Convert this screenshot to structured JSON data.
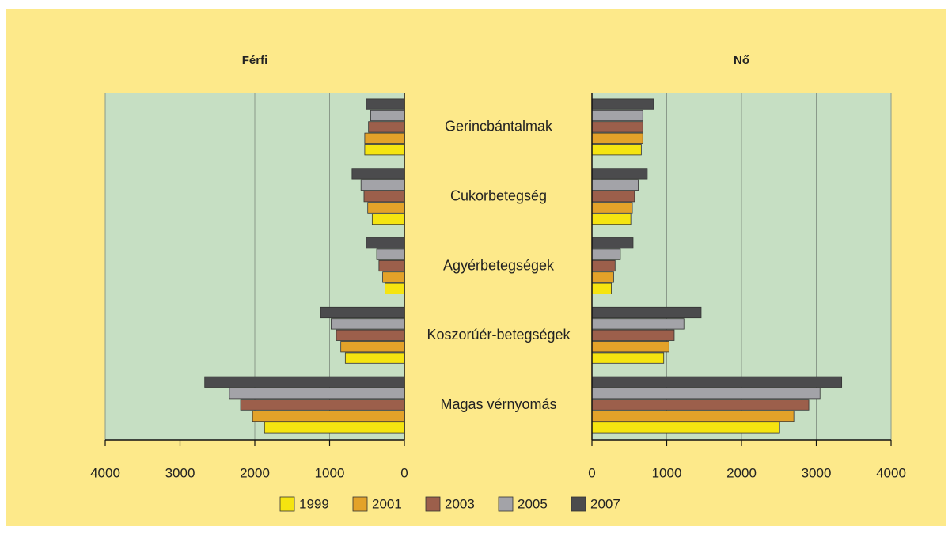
{
  "chart_data": {
    "type": "bar",
    "orientation": "horizontal",
    "categories": [
      "Gerincbántalmak",
      "Cukorbetegség",
      "Agyérbetegségek",
      "Koszorúér-betegségek",
      "Magas vérnyomás"
    ],
    "series": [
      {
        "name": "1999",
        "color": "#f5e410"
      },
      {
        "name": "2001",
        "color": "#e3a229"
      },
      {
        "name": "2003",
        "color": "#9c5f4b"
      },
      {
        "name": "2005",
        "color": "#a3a3a8"
      },
      {
        "name": "2007",
        "color": "#4b4b4d"
      }
    ],
    "panels": [
      {
        "title": "Férfi",
        "x_inverted": true,
        "xlim": [
          0,
          4000
        ],
        "xticks": [
          0,
          1000,
          2000,
          3000,
          4000
        ],
        "grid": true,
        "values": [
          [
            530,
            430,
            260,
            790,
            1870
          ],
          [
            530,
            490,
            290,
            850,
            2030
          ],
          [
            480,
            540,
            340,
            910,
            2190
          ],
          [
            450,
            580,
            370,
            980,
            2340
          ],
          [
            510,
            700,
            510,
            1120,
            2670
          ]
        ]
      },
      {
        "title": "Nő",
        "x_inverted": false,
        "xlim": [
          0,
          4000
        ],
        "xticks": [
          0,
          1000,
          2000,
          3000,
          4000
        ],
        "grid": true,
        "values": [
          [
            660,
            520,
            260,
            960,
            2510
          ],
          [
            680,
            540,
            290,
            1030,
            2700
          ],
          [
            680,
            570,
            310,
            1100,
            2900
          ],
          [
            680,
            620,
            380,
            1230,
            3050
          ],
          [
            825,
            740,
            550,
            1460,
            3340
          ]
        ]
      }
    ]
  }
}
